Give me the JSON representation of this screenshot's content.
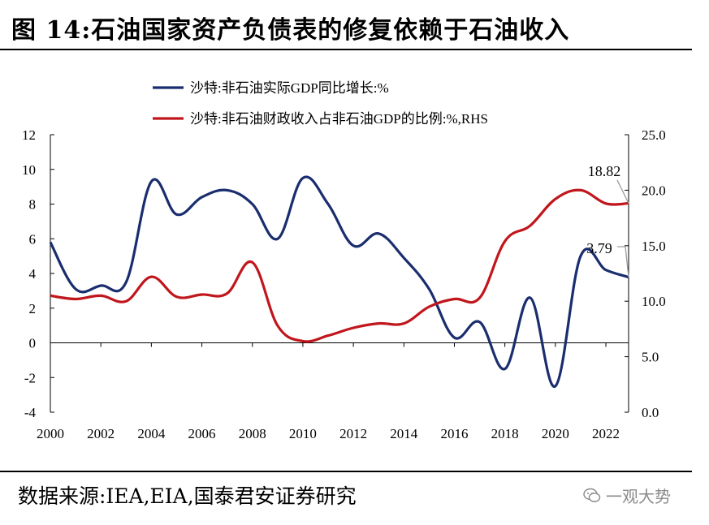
{
  "title": "图 14:石油国家资产负债表的修复依赖于石油收入",
  "source": "数据来源:IEA,EIA,国泰君安证券研究",
  "watermark": "一观大势",
  "colors": {
    "series1": "#1a2d6e",
    "series2": "#c0161c"
  },
  "chart_data": {
    "type": "line",
    "legend": [
      "沙特:非石油实际GDP同比增长:%",
      "沙特:非石油财政收入占非石油GDP的比例:%,RHS"
    ],
    "x_ticks": [
      "2000",
      "2002",
      "2004",
      "2006",
      "2008",
      "2010",
      "2012",
      "2014",
      "2016",
      "2018",
      "2020",
      "2022"
    ],
    "left_ticks": [
      "12",
      "10",
      "8",
      "6",
      "4",
      "2",
      "0",
      "-2",
      "-4"
    ],
    "right_ticks": [
      "25.0",
      "20.0",
      "15.0",
      "10.0",
      "5.0",
      "0.0"
    ],
    "xlim": [
      2000,
      2022.9
    ],
    "ylim_left": [
      -4,
      12
    ],
    "ylim_right": [
      0,
      25
    ],
    "annotations": [
      {
        "text": "18.82",
        "series": 1,
        "x": 2022.9,
        "y": 18.82
      },
      {
        "text": "3.79",
        "series": 0,
        "x": 2022.9,
        "y": 3.79
      }
    ],
    "series": [
      {
        "name": "沙特:非石油实际GDP同比增长:%",
        "axis": "left",
        "x": [
          2000,
          2001,
          2002,
          2003,
          2004,
          2005,
          2006,
          2007,
          2008,
          2009,
          2010,
          2011,
          2012,
          2013,
          2014,
          2015,
          2016,
          2017,
          2018,
          2019,
          2020,
          2021,
          2022,
          2022.9
        ],
        "y": [
          5.8,
          3.1,
          3.3,
          3.5,
          9.3,
          7.4,
          8.4,
          8.8,
          8.0,
          6.0,
          9.5,
          8.0,
          5.6,
          6.3,
          4.9,
          3.1,
          0.3,
          1.2,
          -1.5,
          2.6,
          -2.5,
          5.0,
          4.2,
          3.79
        ]
      },
      {
        "name": "沙特:非石油财政收入占非石油GDP的比例:%,RHS",
        "axis": "right",
        "x": [
          2000,
          2001,
          2002,
          2003,
          2004,
          2005,
          2006,
          2007,
          2008,
          2009,
          2010,
          2011,
          2012,
          2013,
          2014,
          2015,
          2016,
          2017,
          2018,
          2019,
          2020,
          2021,
          2022,
          2022.9
        ],
        "y": [
          10.5,
          10.2,
          10.5,
          10.0,
          12.2,
          10.4,
          10.6,
          10.7,
          13.5,
          7.8,
          6.4,
          6.9,
          7.6,
          8.0,
          8.0,
          9.5,
          10.2,
          10.3,
          15.4,
          16.8,
          19.2,
          20.0,
          18.8,
          18.82
        ]
      }
    ]
  }
}
